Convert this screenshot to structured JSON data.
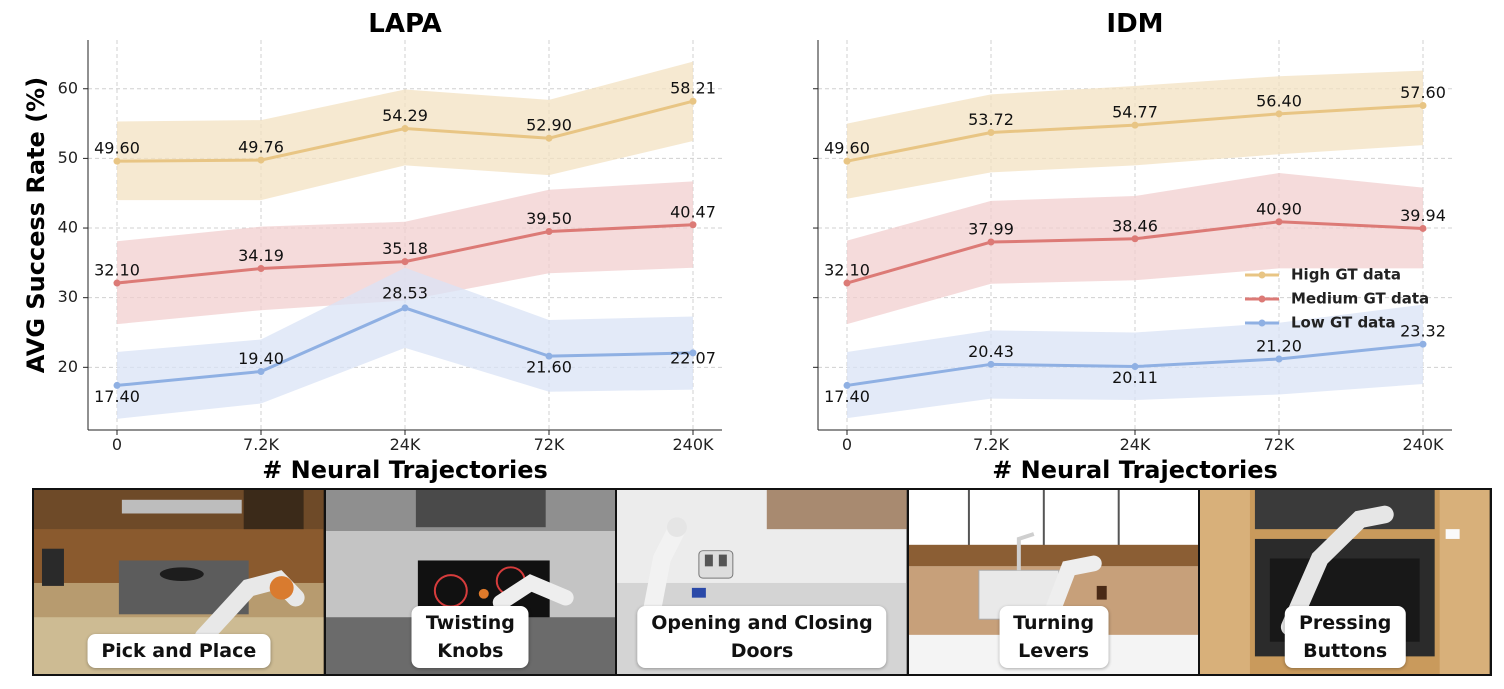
{
  "colors": {
    "high": "#e8c584",
    "medium": "#dc7a76",
    "low": "#8fb0e3",
    "high_band": "#f3e1c2",
    "medium_band": "#f2cfcf",
    "low_band": "#d9e3f6"
  },
  "chart_data": [
    {
      "type": "line",
      "title": "LAPA",
      "xlabel": "# Neural Trajectories",
      "ylabel": "AVG Success Rate (%)",
      "categories": [
        "0",
        "7.2K",
        "24K",
        "72K",
        "240K"
      ],
      "ylim": [
        11,
        67
      ],
      "yticks": [
        20,
        30,
        40,
        50,
        60
      ],
      "grid": true,
      "series": [
        {
          "name": "High GT data",
          "key": "high",
          "values": [
            49.6,
            49.76,
            54.29,
            52.9,
            58.21
          ],
          "labels": [
            "49.60",
            "49.76",
            "54.29",
            "52.90",
            "58.21"
          ],
          "band_low": [
            44.0,
            44.0,
            49.0,
            47.6,
            52.5
          ],
          "band_high": [
            55.3,
            55.5,
            59.9,
            58.4,
            63.9
          ]
        },
        {
          "name": "Medium GT data",
          "key": "medium",
          "values": [
            32.1,
            34.19,
            35.18,
            39.5,
            40.47
          ],
          "labels": [
            "32.10",
            "34.19",
            "35.18",
            "39.50",
            "40.47"
          ],
          "band_low": [
            26.2,
            28.2,
            29.6,
            33.5,
            34.3
          ],
          "band_high": [
            38.1,
            40.2,
            40.9,
            45.5,
            46.7
          ]
        },
        {
          "name": "Low GT data",
          "key": "low",
          "values": [
            17.4,
            19.4,
            28.53,
            21.6,
            22.07
          ],
          "labels": [
            "17.40",
            "19.40",
            "28.53",
            "21.60",
            "22.07"
          ],
          "band_low": [
            12.6,
            14.8,
            22.8,
            16.5,
            16.8
          ],
          "band_high": [
            22.2,
            24.0,
            34.3,
            26.8,
            27.3
          ]
        }
      ]
    },
    {
      "type": "line",
      "title": "IDM",
      "xlabel": "# Neural Trajectories",
      "ylabel": "",
      "categories": [
        "0",
        "7.2K",
        "24K",
        "72K",
        "240K"
      ],
      "ylim": [
        11,
        67
      ],
      "yticks": [
        20,
        30,
        40,
        50,
        60
      ],
      "grid": true,
      "legend": "center-right",
      "series": [
        {
          "name": "High GT data",
          "key": "high",
          "values": [
            49.6,
            53.72,
            54.77,
            56.4,
            57.6
          ],
          "labels": [
            "49.60",
            "53.72",
            "54.77",
            "56.40",
            "57.60"
          ],
          "band_low": [
            44.2,
            48.0,
            49.0,
            50.6,
            51.9
          ],
          "band_high": [
            55.0,
            59.2,
            60.4,
            61.8,
            62.6
          ]
        },
        {
          "name": "Medium GT data",
          "key": "medium",
          "values": [
            32.1,
            37.99,
            38.46,
            40.9,
            39.94
          ],
          "labels": [
            "32.10",
            "37.99",
            "38.46",
            "40.90",
            "39.94"
          ],
          "band_low": [
            26.2,
            32.0,
            32.5,
            34.2,
            34.2
          ],
          "band_high": [
            38.2,
            43.9,
            44.6,
            47.9,
            45.8
          ]
        },
        {
          "name": "Low GT data",
          "key": "low",
          "values": [
            17.4,
            20.43,
            20.11,
            21.2,
            23.32
          ],
          "labels": [
            "17.40",
            "20.43",
            "20.11",
            "21.20",
            "23.32"
          ],
          "band_low": [
            12.7,
            15.5,
            15.3,
            16.1,
            17.6
          ],
          "band_high": [
            22.2,
            25.3,
            25.0,
            26.4,
            29.0
          ]
        }
      ]
    }
  ],
  "panels": [
    {
      "caption": "Pick and Place"
    },
    {
      "caption": "Twisting\nKnobs"
    },
    {
      "caption": "Opening and Closing\nDoors"
    },
    {
      "caption": "Turning\nLevers"
    },
    {
      "caption": "Pressing\nButtons"
    }
  ]
}
